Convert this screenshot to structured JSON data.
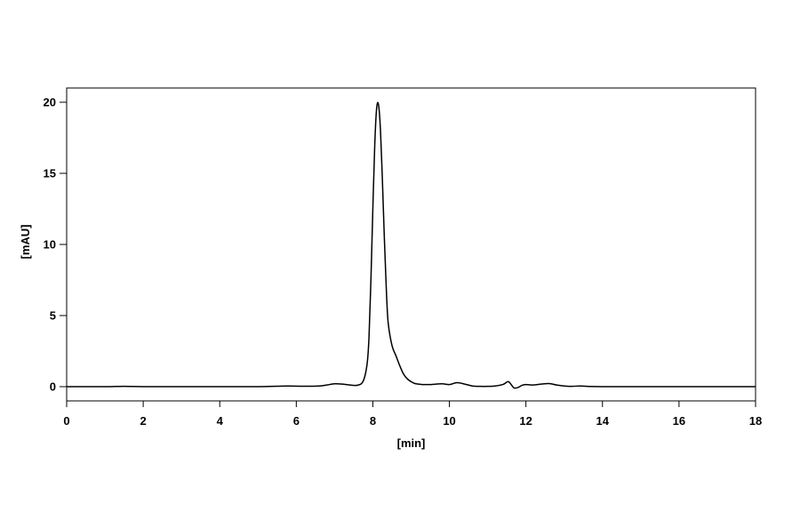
{
  "chart_data": {
    "type": "line",
    "xlabel": "[min]",
    "ylabel": "[mAU]",
    "xlim": [
      0,
      18
    ],
    "ylim": [
      -1,
      21
    ],
    "xticks": [
      0,
      2,
      4,
      6,
      8,
      10,
      12,
      14,
      16,
      18
    ],
    "yticks": [
      0,
      5,
      10,
      15,
      20
    ],
    "grid": false,
    "line_color": "#000000",
    "series": [
      {
        "x": [
          0,
          1,
          1.5,
          2,
          3,
          4,
          5,
          5.5,
          5.8,
          6.2,
          6.6,
          6.8,
          7.0,
          7.2,
          7.4,
          7.6,
          7.75,
          7.85,
          7.9,
          7.95,
          8.0,
          8.05,
          8.1,
          8.15,
          8.2,
          8.25,
          8.3,
          8.35,
          8.4,
          8.5,
          8.6,
          8.7,
          8.8,
          8.9,
          9.0,
          9.1,
          9.2,
          9.3,
          9.5,
          9.8,
          10.0,
          10.2,
          10.4,
          10.6,
          10.8,
          11.0,
          11.2,
          11.4,
          11.5,
          11.55,
          11.6,
          11.65,
          11.7,
          11.8,
          11.9,
          12.0,
          12.2,
          12.4,
          12.6,
          12.8,
          13.0,
          13.2,
          13.4,
          13.6,
          14,
          15,
          16,
          17,
          18
        ],
        "values": [
          0,
          0,
          0.02,
          0,
          0,
          0,
          0,
          0.03,
          0.05,
          0.03,
          0.05,
          0.12,
          0.2,
          0.18,
          0.12,
          0.1,
          0.4,
          1.6,
          3.5,
          7.5,
          12.5,
          17.0,
          19.6,
          19.8,
          18.0,
          14.5,
          10.5,
          7.0,
          4.5,
          2.9,
          2.2,
          1.5,
          0.9,
          0.55,
          0.35,
          0.22,
          0.18,
          0.15,
          0.15,
          0.2,
          0.15,
          0.28,
          0.18,
          0.05,
          0.02,
          0.02,
          0.05,
          0.15,
          0.32,
          0.35,
          0.2,
          0.02,
          -0.1,
          -0.05,
          0.1,
          0.15,
          0.12,
          0.18,
          0.22,
          0.12,
          0.05,
          0.02,
          0.05,
          0.02,
          0,
          0,
          0,
          0,
          0
        ]
      }
    ]
  }
}
